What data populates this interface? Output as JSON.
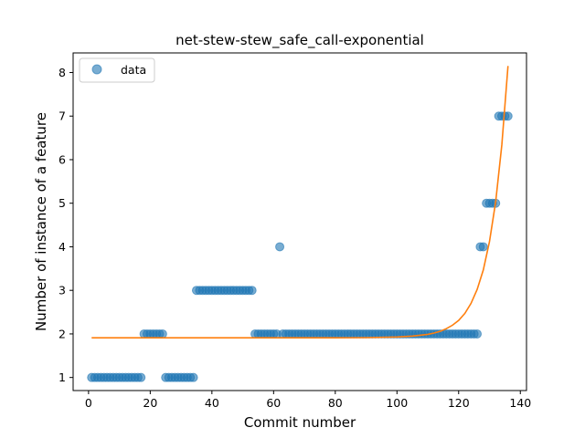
{
  "chart_data": {
    "type": "scatter",
    "title": "net-stew-stew_safe_call-exponential",
    "xlabel": "Commit number",
    "ylabel": "Number of instance of a feature",
    "xlim": [
      -5,
      142
    ],
    "ylim": [
      0.7,
      8.45
    ],
    "xticks": [
      0,
      20,
      40,
      60,
      80,
      100,
      120,
      140
    ],
    "yticks": [
      1,
      2,
      3,
      4,
      5,
      6,
      7,
      8
    ],
    "legend": {
      "position": "top-left",
      "entries": [
        "data"
      ]
    },
    "colors": {
      "points": "#1f77b4",
      "fit": "#ff7f0e"
    },
    "series": [
      {
        "name": "data",
        "kind": "scatter",
        "x": [
          1,
          2,
          3,
          4,
          5,
          6,
          7,
          8,
          9,
          10,
          11,
          12,
          13,
          14,
          15,
          16,
          17,
          18,
          19,
          20,
          21,
          22,
          23,
          24,
          25,
          26,
          27,
          28,
          29,
          30,
          31,
          32,
          33,
          34,
          35,
          36,
          37,
          38,
          39,
          40,
          41,
          42,
          43,
          44,
          45,
          46,
          47,
          48,
          49,
          50,
          51,
          52,
          53,
          54,
          55,
          56,
          57,
          58,
          59,
          60,
          61,
          62,
          63,
          64,
          65,
          66,
          67,
          68,
          69,
          70,
          71,
          72,
          73,
          74,
          75,
          76,
          77,
          78,
          79,
          80,
          81,
          82,
          83,
          84,
          85,
          86,
          87,
          88,
          89,
          90,
          91,
          92,
          93,
          94,
          95,
          96,
          97,
          98,
          99,
          100,
          101,
          102,
          103,
          104,
          105,
          106,
          107,
          108,
          109,
          110,
          111,
          112,
          113,
          114,
          115,
          116,
          117,
          118,
          119,
          120,
          121,
          122,
          123,
          124,
          125,
          126,
          127,
          128,
          129,
          130,
          131,
          132,
          133,
          134,
          135,
          136
        ],
        "y": [
          1,
          1,
          1,
          1,
          1,
          1,
          1,
          1,
          1,
          1,
          1,
          1,
          1,
          1,
          1,
          1,
          1,
          2,
          2,
          2,
          2,
          2,
          2,
          2,
          1,
          1,
          1,
          1,
          1,
          1,
          1,
          1,
          1,
          1,
          3,
          3,
          3,
          3,
          3,
          3,
          3,
          3,
          3,
          3,
          3,
          3,
          3,
          3,
          3,
          3,
          3,
          3,
          3,
          2,
          2,
          2,
          2,
          2,
          2,
          2,
          2,
          4,
          2,
          2,
          2,
          2,
          2,
          2,
          2,
          2,
          2,
          2,
          2,
          2,
          2,
          2,
          2,
          2,
          2,
          2,
          2,
          2,
          2,
          2,
          2,
          2,
          2,
          2,
          2,
          2,
          2,
          2,
          2,
          2,
          2,
          2,
          2,
          2,
          2,
          2,
          2,
          2,
          2,
          2,
          2,
          2,
          2,
          2,
          2,
          2,
          2,
          2,
          2,
          2,
          2,
          2,
          2,
          2,
          2,
          2,
          2,
          2,
          2,
          2,
          2,
          2,
          4,
          4,
          5,
          5,
          5,
          5,
          7,
          7,
          7,
          7
        ]
      },
      {
        "name": "",
        "kind": "line",
        "x": [
          1,
          10,
          20,
          30,
          40,
          50,
          60,
          70,
          80,
          90,
          100,
          105,
          110,
          112,
          114,
          116,
          118,
          120,
          122,
          124,
          126,
          128,
          130,
          132,
          134,
          136
        ],
        "y": [
          1.91,
          1.91,
          1.91,
          1.91,
          1.91,
          1.91,
          1.91,
          1.91,
          1.91,
          1.915,
          1.93,
          1.95,
          1.99,
          2.02,
          2.06,
          2.12,
          2.2,
          2.31,
          2.47,
          2.7,
          3.02,
          3.47,
          4.12,
          5.03,
          6.34,
          8.15
        ]
      }
    ]
  }
}
